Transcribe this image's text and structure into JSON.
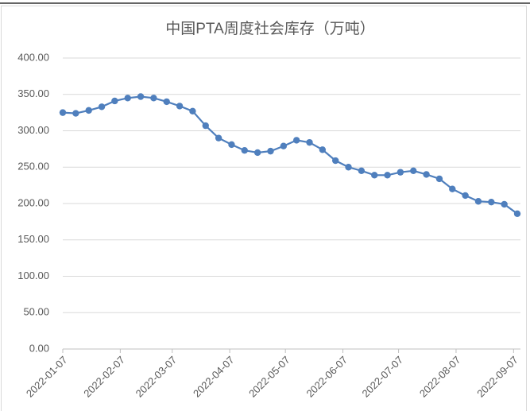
{
  "chart_data": {
    "type": "line",
    "title": "中国PTA周度社会库存（万吨）",
    "x": [
      "2022-01-07",
      "2022-01-14",
      "2022-01-21",
      "2022-01-28",
      "2022-02-04",
      "2022-02-11",
      "2022-02-18",
      "2022-02-25",
      "2022-03-04",
      "2022-03-11",
      "2022-03-18",
      "2022-03-25",
      "2022-04-01",
      "2022-04-08",
      "2022-04-15",
      "2022-04-22",
      "2022-04-29",
      "2022-05-06",
      "2022-05-13",
      "2022-05-20",
      "2022-05-27",
      "2022-06-03",
      "2022-06-10",
      "2022-06-17",
      "2022-06-24",
      "2022-07-01",
      "2022-07-08",
      "2022-07-15",
      "2022-07-22",
      "2022-07-29",
      "2022-08-05",
      "2022-08-12",
      "2022-08-19",
      "2022-08-26",
      "2022-09-02",
      "2022-09-09"
    ],
    "values": [
      325,
      324,
      328,
      333,
      341,
      345,
      347,
      345,
      340,
      334,
      327,
      307,
      290,
      281,
      273,
      270,
      272,
      279,
      287,
      284,
      274,
      259,
      250,
      245,
      239,
      239,
      243,
      245,
      240,
      234,
      220,
      211,
      203,
      202,
      199,
      186
    ],
    "color": "#4f7fbd",
    "xlim": [
      "2022-01-07",
      "2022-09-09"
    ],
    "xticks": [
      "2022-01-07",
      "2022-02-07",
      "2022-03-07",
      "2022-04-07",
      "2022-05-07",
      "2022-06-07",
      "2022-07-07",
      "2022-08-07",
      "2022-09-07"
    ],
    "ylim": [
      0,
      400
    ],
    "yticks": [
      {
        "value": 0,
        "label": "0.00"
      },
      {
        "value": 50,
        "label": "50.00"
      },
      {
        "value": 100,
        "label": "100.00"
      },
      {
        "value": 150,
        "label": "150.00"
      },
      {
        "value": 200,
        "label": "200.00"
      },
      {
        "value": 250,
        "label": "250.00"
      },
      {
        "value": 300,
        "label": "300.00"
      },
      {
        "value": 350,
        "label": "350.00"
      },
      {
        "value": 400,
        "label": "400.00"
      }
    ],
    "grid": true
  }
}
